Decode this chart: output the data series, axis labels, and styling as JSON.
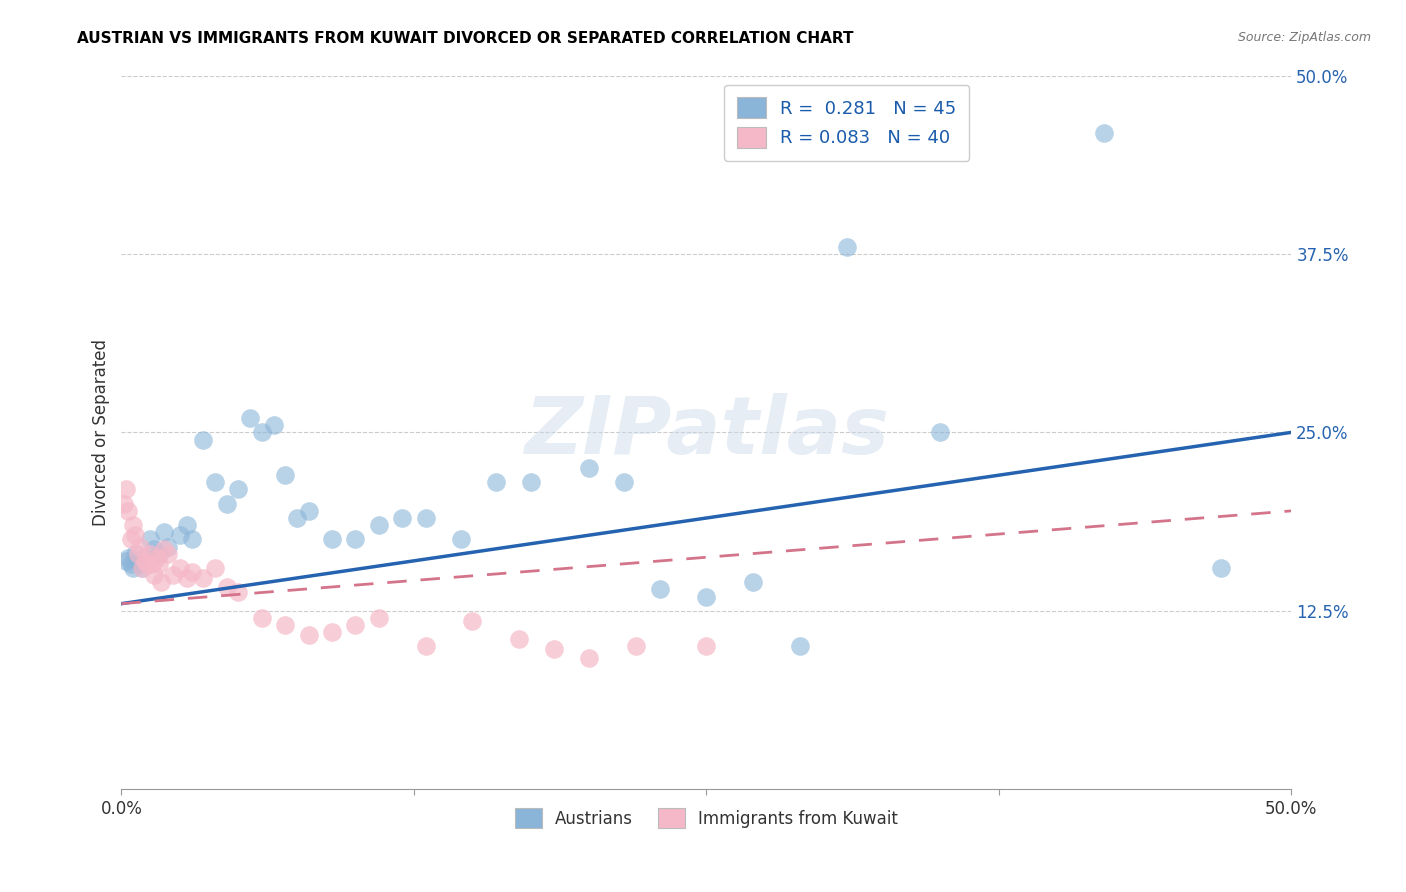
{
  "title": "AUSTRIAN VS IMMIGRANTS FROM KUWAIT DIVORCED OR SEPARATED CORRELATION CHART",
  "source": "Source: ZipAtlas.com",
  "ylabel": "Divorced or Separated",
  "xlim": [
    0.0,
    0.5
  ],
  "ylim": [
    0.0,
    0.5
  ],
  "xtick_labels": [
    "0.0%",
    "",
    "",
    "",
    "50.0%"
  ],
  "xtick_vals": [
    0.0,
    0.125,
    0.25,
    0.375,
    0.5
  ],
  "ytick_labels": [
    "12.5%",
    "25.0%",
    "37.5%",
    "50.0%"
  ],
  "ytick_vals": [
    0.125,
    0.25,
    0.375,
    0.5
  ],
  "grid_yticks": [
    0.125,
    0.25,
    0.375,
    0.5
  ],
  "legend_top_labels": [
    "R =  0.281   N = 45",
    "R = 0.083   N = 40"
  ],
  "legend_bottom": [
    "Austrians",
    "Immigrants from Kuwait"
  ],
  "watermark": "ZIPatlas",
  "blue_scatter_color": "#8ab4d8",
  "pink_scatter_color": "#f5b8c8",
  "blue_line_color": "#2563b0",
  "pink_line_color": "#d4748a",
  "blue_line_start_y": 0.13,
  "blue_line_end_y": 0.25,
  "pink_line_start_y": 0.13,
  "pink_line_end_y": 0.195,
  "austrians_x": [
    0.002,
    0.003,
    0.004,
    0.005,
    0.006,
    0.007,
    0.008,
    0.009,
    0.01,
    0.012,
    0.014,
    0.016,
    0.018,
    0.02,
    0.025,
    0.028,
    0.03,
    0.035,
    0.04,
    0.045,
    0.05,
    0.055,
    0.06,
    0.065,
    0.07,
    0.075,
    0.08,
    0.09,
    0.1,
    0.11,
    0.12,
    0.13,
    0.145,
    0.16,
    0.175,
    0.2,
    0.215,
    0.23,
    0.25,
    0.27,
    0.29,
    0.31,
    0.35,
    0.42,
    0.47
  ],
  "austrians_y": [
    0.16,
    0.162,
    0.158,
    0.155,
    0.165,
    0.16,
    0.158,
    0.155,
    0.162,
    0.175,
    0.168,
    0.165,
    0.18,
    0.17,
    0.178,
    0.185,
    0.175,
    0.245,
    0.215,
    0.2,
    0.21,
    0.26,
    0.25,
    0.255,
    0.22,
    0.19,
    0.195,
    0.175,
    0.175,
    0.185,
    0.19,
    0.19,
    0.175,
    0.215,
    0.215,
    0.225,
    0.215,
    0.14,
    0.135,
    0.145,
    0.1,
    0.38,
    0.25,
    0.46,
    0.155
  ],
  "kuwait_x": [
    0.001,
    0.002,
    0.003,
    0.004,
    0.005,
    0.006,
    0.007,
    0.008,
    0.009,
    0.01,
    0.011,
    0.012,
    0.013,
    0.014,
    0.015,
    0.016,
    0.017,
    0.018,
    0.02,
    0.022,
    0.025,
    0.028,
    0.03,
    0.035,
    0.04,
    0.045,
    0.05,
    0.06,
    0.07,
    0.08,
    0.09,
    0.1,
    0.11,
    0.13,
    0.15,
    0.17,
    0.185,
    0.2,
    0.22,
    0.25
  ],
  "kuwait_y": [
    0.2,
    0.21,
    0.195,
    0.175,
    0.185,
    0.178,
    0.165,
    0.17,
    0.155,
    0.16,
    0.158,
    0.165,
    0.158,
    0.15,
    0.162,
    0.158,
    0.145,
    0.168,
    0.165,
    0.15,
    0.155,
    0.148,
    0.152,
    0.148,
    0.155,
    0.142,
    0.138,
    0.12,
    0.115,
    0.108,
    0.11,
    0.115,
    0.12,
    0.1,
    0.118,
    0.105,
    0.098,
    0.092,
    0.1,
    0.1
  ]
}
